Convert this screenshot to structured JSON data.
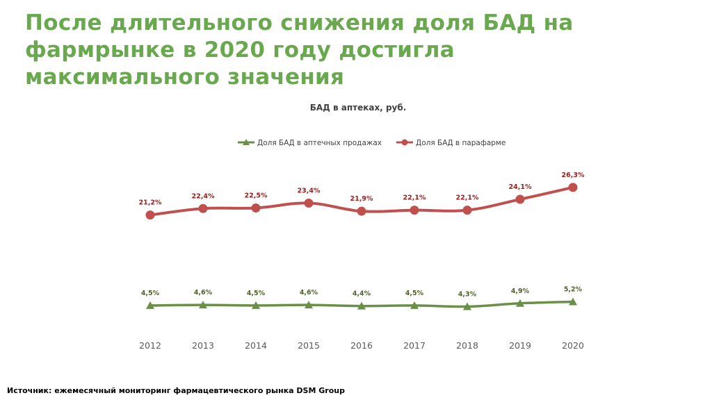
{
  "slide": {
    "title": "После длительного снижения доля БАД на\nфармрынке в 2020 году достигла\nмаксимального значения",
    "source": "Источник: ежемесячный мониторинг фармацевтического рынка DSM Group"
  },
  "colors": {
    "title": "#6aa84f",
    "green_series": "#6a8f48",
    "red_series": "#c0504d",
    "green_label": "#4f6228",
    "red_label": "#9b1c1c",
    "axis_text": "#595959",
    "chart_title": "#404040"
  },
  "chart_data": {
    "type": "line",
    "title": "БАД в аптеках, руб.",
    "x": [
      "2012",
      "2013",
      "2014",
      "2015",
      "2016",
      "2017",
      "2018",
      "2019",
      "2020"
    ],
    "ylim": [
      0,
      30
    ],
    "grid": false,
    "legend_position": "top",
    "series": [
      {
        "name": "Доля БАД в аптечных продажах",
        "marker": "triangle",
        "color": "#6a8f48",
        "values": [
          4.5,
          4.6,
          4.5,
          4.6,
          4.4,
          4.5,
          4.3,
          4.9,
          5.2
        ],
        "labels": [
          "4,5%",
          "4,6%",
          "4,5%",
          "4,6%",
          "4,4%",
          "4,5%",
          "4,3%",
          "4,9%",
          "5,2%"
        ]
      },
      {
        "name": "Доля БАД в парафарме",
        "marker": "circle",
        "color": "#c0504d",
        "values": [
          21.2,
          22.4,
          22.5,
          23.4,
          21.9,
          22.1,
          22.1,
          24.1,
          26.3
        ],
        "labels": [
          "21,2%",
          "22,4%",
          "22,5%",
          "23,4%",
          "21,9%",
          "22,1%",
          "22,1%",
          "24,1%",
          "26,3%"
        ]
      }
    ]
  }
}
